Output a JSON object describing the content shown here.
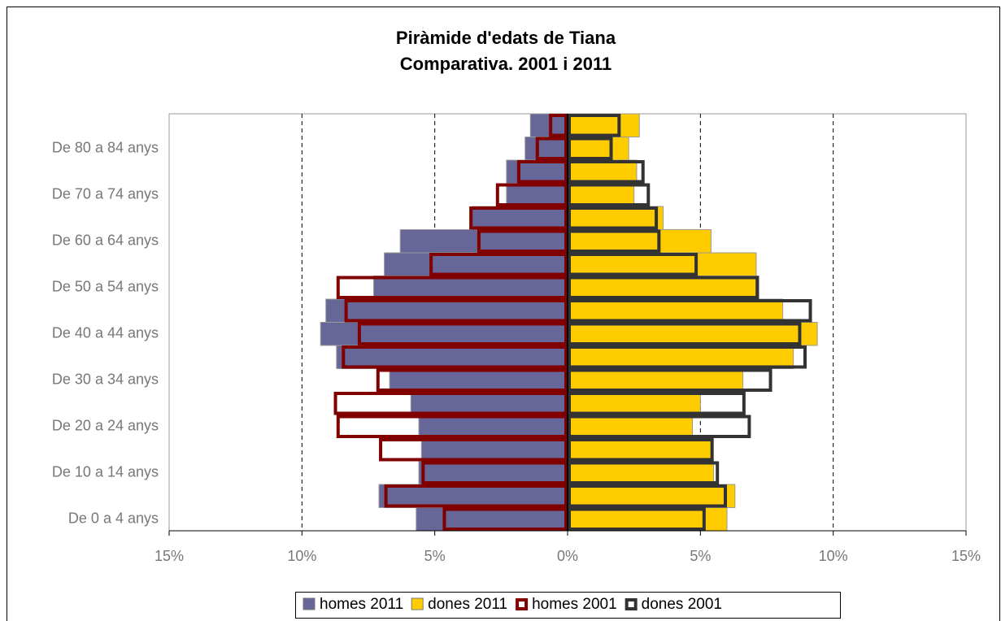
{
  "chart_data": {
    "type": "pyramid",
    "title": "Piràmide d'edats de Tiana",
    "subtitle": "Comparativa. 2001 i 2011",
    "categories": [
      "De 0 a 4 anys",
      null,
      "De 10 a 14 anys",
      null,
      "De 20 a 24 anys",
      null,
      "De 30 a 34 anys",
      null,
      "De 40 a 44 anys",
      null,
      "De 50 a 54 anys",
      null,
      "De 60 a 64 anys",
      null,
      "De 70 a 74 anys",
      null,
      "De 80 a 84 anys",
      null
    ],
    "series": [
      {
        "name": "homes 2011",
        "color": "#666699",
        "outline": false,
        "values": [
          -5.7,
          -7.1,
          -5.6,
          -5.5,
          -5.6,
          -5.9,
          -6.7,
          -8.7,
          -9.3,
          -9.1,
          -7.3,
          -6.9,
          -6.3,
          -3.6,
          -2.3,
          -2.3,
          -1.6,
          -1.4
        ]
      },
      {
        "name": "dones 2011",
        "color": "#ffcc00",
        "outline": false,
        "values": [
          6.0,
          6.3,
          5.5,
          5.4,
          4.7,
          5.0,
          6.6,
          8.5,
          9.4,
          8.1,
          7.2,
          7.1,
          5.4,
          3.6,
          2.5,
          2.6,
          2.3,
          2.7
        ]
      },
      {
        "name": "homes 2001",
        "color": "#800000",
        "outline": true,
        "values": [
          -4.7,
          -6.9,
          -5.5,
          -7.1,
          -8.7,
          -8.8,
          -7.2,
          -8.5,
          -7.9,
          -8.4,
          -8.7,
          -5.2,
          -3.4,
          -3.7,
          -2.7,
          -1.9,
          -1.2,
          -0.7
        ]
      },
      {
        "name": "dones 2001",
        "color": "#333333",
        "outline": true,
        "values": [
          5.2,
          6.0,
          5.7,
          5.5,
          6.9,
          6.7,
          7.7,
          9.0,
          8.8,
          9.2,
          7.2,
          4.9,
          3.5,
          3.4,
          3.1,
          2.9,
          1.7,
          2.0
        ]
      }
    ],
    "xlim": [
      -15,
      15
    ],
    "xticks": [
      {
        "value": -15,
        "label": "15%"
      },
      {
        "value": -10,
        "label": "10%"
      },
      {
        "value": -5,
        "label": "5%"
      },
      {
        "value": 0,
        "label": "0%"
      },
      {
        "value": 5,
        "label": "5%"
      },
      {
        "value": 10,
        "label": "10%"
      },
      {
        "value": 15,
        "label": "15%"
      }
    ],
    "grid": true,
    "legend": "bottom"
  }
}
